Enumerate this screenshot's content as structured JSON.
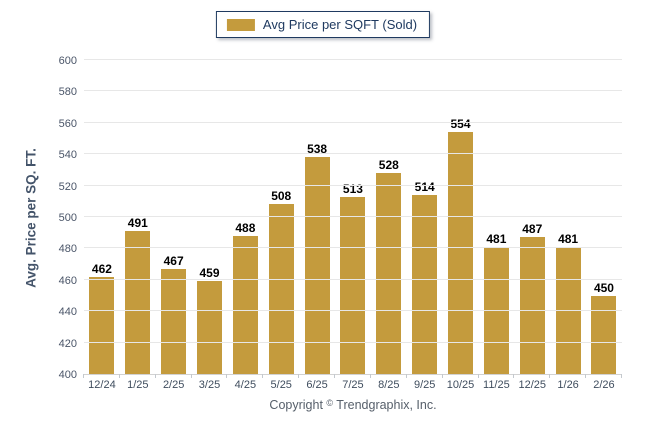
{
  "legend": {
    "label": "Avg Price per SQFT (Sold)"
  },
  "copyright": {
    "prefix": "Copyright",
    "symbol": "©",
    "company": "Trendgraphix, Inc."
  },
  "colors": {
    "bar": "#C49B3D",
    "legend_border": "#1F3A60",
    "grid": "#E7E7E7",
    "axis": "#D2D2D2"
  },
  "chart_data": {
    "type": "bar",
    "title": "Avg Price per SQFT (Sold)",
    "xlabel": "",
    "ylabel": "Avg. Price per SQ. FT.",
    "ylim": [
      400,
      600
    ],
    "ytick_step": 20,
    "grid": true,
    "legend_position": "top-center",
    "bar_color": "#C49B3D",
    "categories": [
      "12/24",
      "1/25",
      "2/25",
      "3/25",
      "4/25",
      "5/25",
      "6/25",
      "7/25",
      "8/25",
      "9/25",
      "10/25",
      "11/25",
      "12/25",
      "1/26",
      "2/26"
    ],
    "values": [
      462,
      491,
      467,
      459,
      488,
      508,
      538,
      513,
      528,
      514,
      554,
      481,
      487,
      481,
      450
    ]
  }
}
